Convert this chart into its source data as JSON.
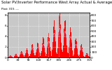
{
  "title": "Solar PV/Inverter Performance West Array Actual & Average Power Output",
  "subtitle": "Past 315 ---",
  "ylim": [
    0,
    850
  ],
  "bar_color": "#ff0000",
  "avg_line_color": "#c8c8ff",
  "bg_color": "#ffffff",
  "plot_bg_color": "#c8c8c8",
  "grid_color": "#ffffff",
  "num_bars": 315,
  "days": 15,
  "title_fontsize": 3.8,
  "subtitle_fontsize": 3.2,
  "tick_fontsize": 3.2,
  "right_yticks": [
    0,
    100,
    200,
    300,
    400,
    500,
    600,
    700,
    800
  ],
  "right_ytick_labels": [
    "0",
    "1C",
    "2C",
    "3C",
    "4C",
    "5C",
    "6C",
    "7C",
    "8C"
  ]
}
